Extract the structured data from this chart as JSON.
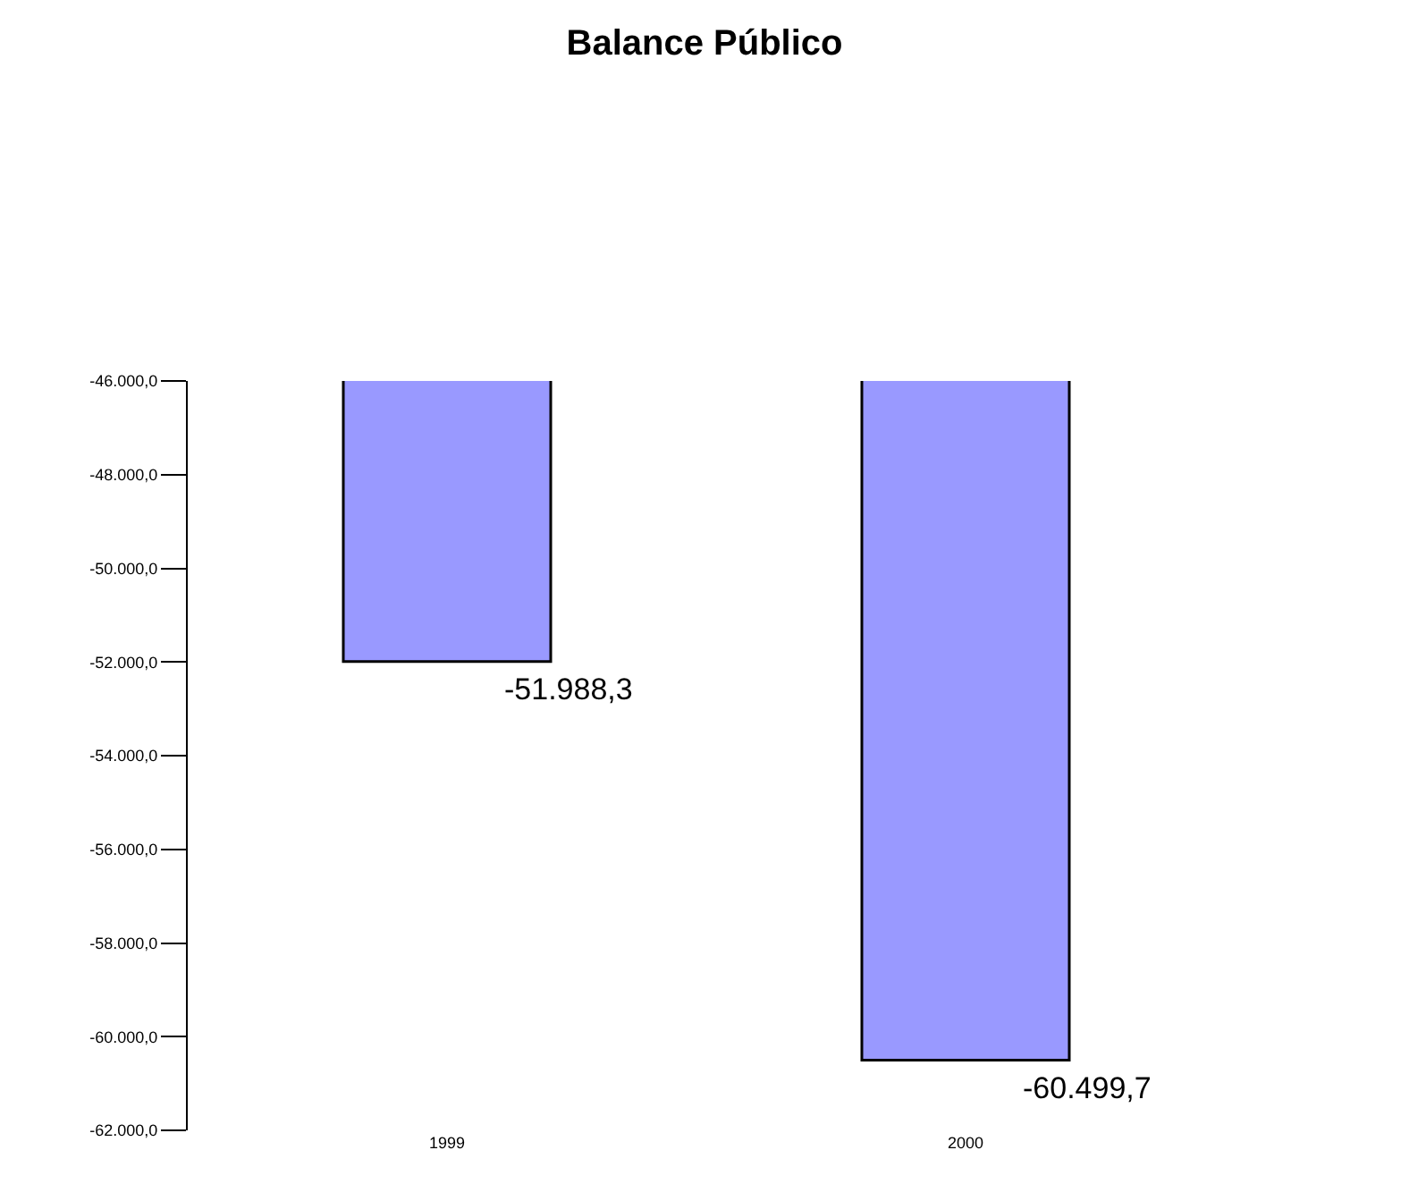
{
  "chart_data": {
    "type": "bar",
    "title": "Balance Público",
    "categories": [
      "1999",
      "2000"
    ],
    "values": [
      -51988.3,
      -60499.7
    ],
    "value_labels": [
      "-51.988,3",
      "-60.499,7"
    ],
    "color": "#9999ff",
    "ylim": [
      -62000,
      -46000
    ],
    "yticks": [
      {
        "value": -46000,
        "label": "-46.000,0"
      },
      {
        "value": -48000,
        "label": "-48.000,0"
      },
      {
        "value": -50000,
        "label": "-50.000,0"
      },
      {
        "value": -52000,
        "label": "-52.000,0"
      },
      {
        "value": -54000,
        "label": "-54.000,0"
      },
      {
        "value": -56000,
        "label": "-56.000,0"
      },
      {
        "value": -58000,
        "label": "-58.000,0"
      },
      {
        "value": -60000,
        "label": "-60.000,0"
      },
      {
        "value": -62000,
        "label": "-62.000,0"
      }
    ],
    "ylabel": null
  }
}
